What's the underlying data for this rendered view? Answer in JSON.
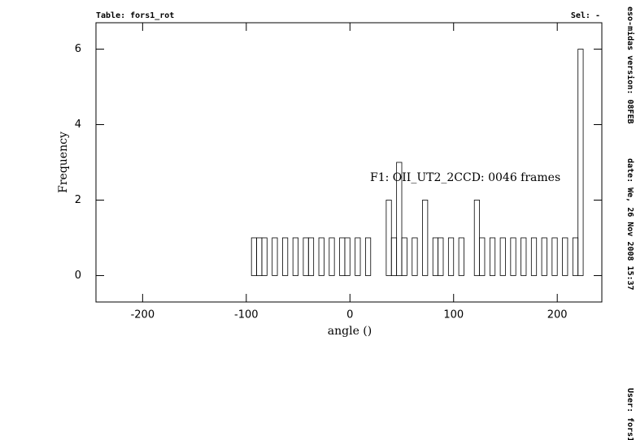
{
  "chart_data": {
    "type": "histogram",
    "header_left": "Table: fors1_rot",
    "header_right": "Sel: -",
    "side_texts": [
      "eso-midas version: 08FEB",
      "date: We, 26 Nov 2008 15:37",
      "User: fors1"
    ],
    "annotation": "F1: OII_UT2_2CCD: 0046 frames",
    "xlabel": "angle ()",
    "ylabel": "Frequency",
    "bins": [
      -225,
      -220,
      -215,
      -210,
      -205,
      -200,
      -195,
      -190,
      -185,
      -180,
      -175,
      -170,
      -165,
      -160,
      -155,
      -150,
      -145,
      -140,
      -135,
      -130,
      -125,
      -120,
      -115,
      -110,
      -105,
      -100,
      -95,
      -90,
      -85,
      -80,
      -75,
      -70,
      -65,
      -60,
      -55,
      -50,
      -45,
      -40,
      -35,
      -30,
      -25,
      -20,
      -15,
      -10,
      -5,
      0,
      5,
      10,
      15,
      20,
      25,
      30,
      35,
      40,
      45,
      50,
      55,
      60,
      65,
      70,
      75,
      80,
      85,
      90,
      95,
      100,
      105,
      110,
      115,
      120,
      125,
      130,
      135,
      140,
      145,
      150,
      155,
      160,
      165,
      170,
      175,
      180,
      185,
      190,
      195,
      200,
      205,
      210,
      215,
      220,
      225
    ],
    "counts": [
      0,
      0,
      0,
      0,
      0,
      0,
      0,
      0,
      0,
      0,
      0,
      0,
      0,
      0,
      0,
      0,
      0,
      0,
      0,
      0,
      0,
      0,
      0,
      0,
      0,
      0,
      1,
      1,
      1,
      0,
      1,
      0,
      1,
      0,
      1,
      0,
      1,
      1,
      0,
      1,
      0,
      1,
      0,
      1,
      1,
      0,
      1,
      0,
      1,
      0,
      0,
      0,
      2,
      1,
      3,
      1,
      0,
      1,
      0,
      2,
      0,
      1,
      1,
      0,
      1,
      0,
      1,
      0,
      0,
      2,
      1,
      0,
      1,
      0,
      1,
      0,
      1,
      0,
      1,
      0,
      1,
      0,
      1,
      0,
      1,
      0,
      1,
      0,
      1,
      6
    ],
    "color": "#000000",
    "xlim": [
      -245,
      243
    ],
    "ylim": [
      -0.7,
      6.7
    ],
    "xticks": [
      -200,
      -100,
      0,
      100,
      200
    ],
    "yticks": [
      0,
      2,
      4,
      6
    ]
  }
}
